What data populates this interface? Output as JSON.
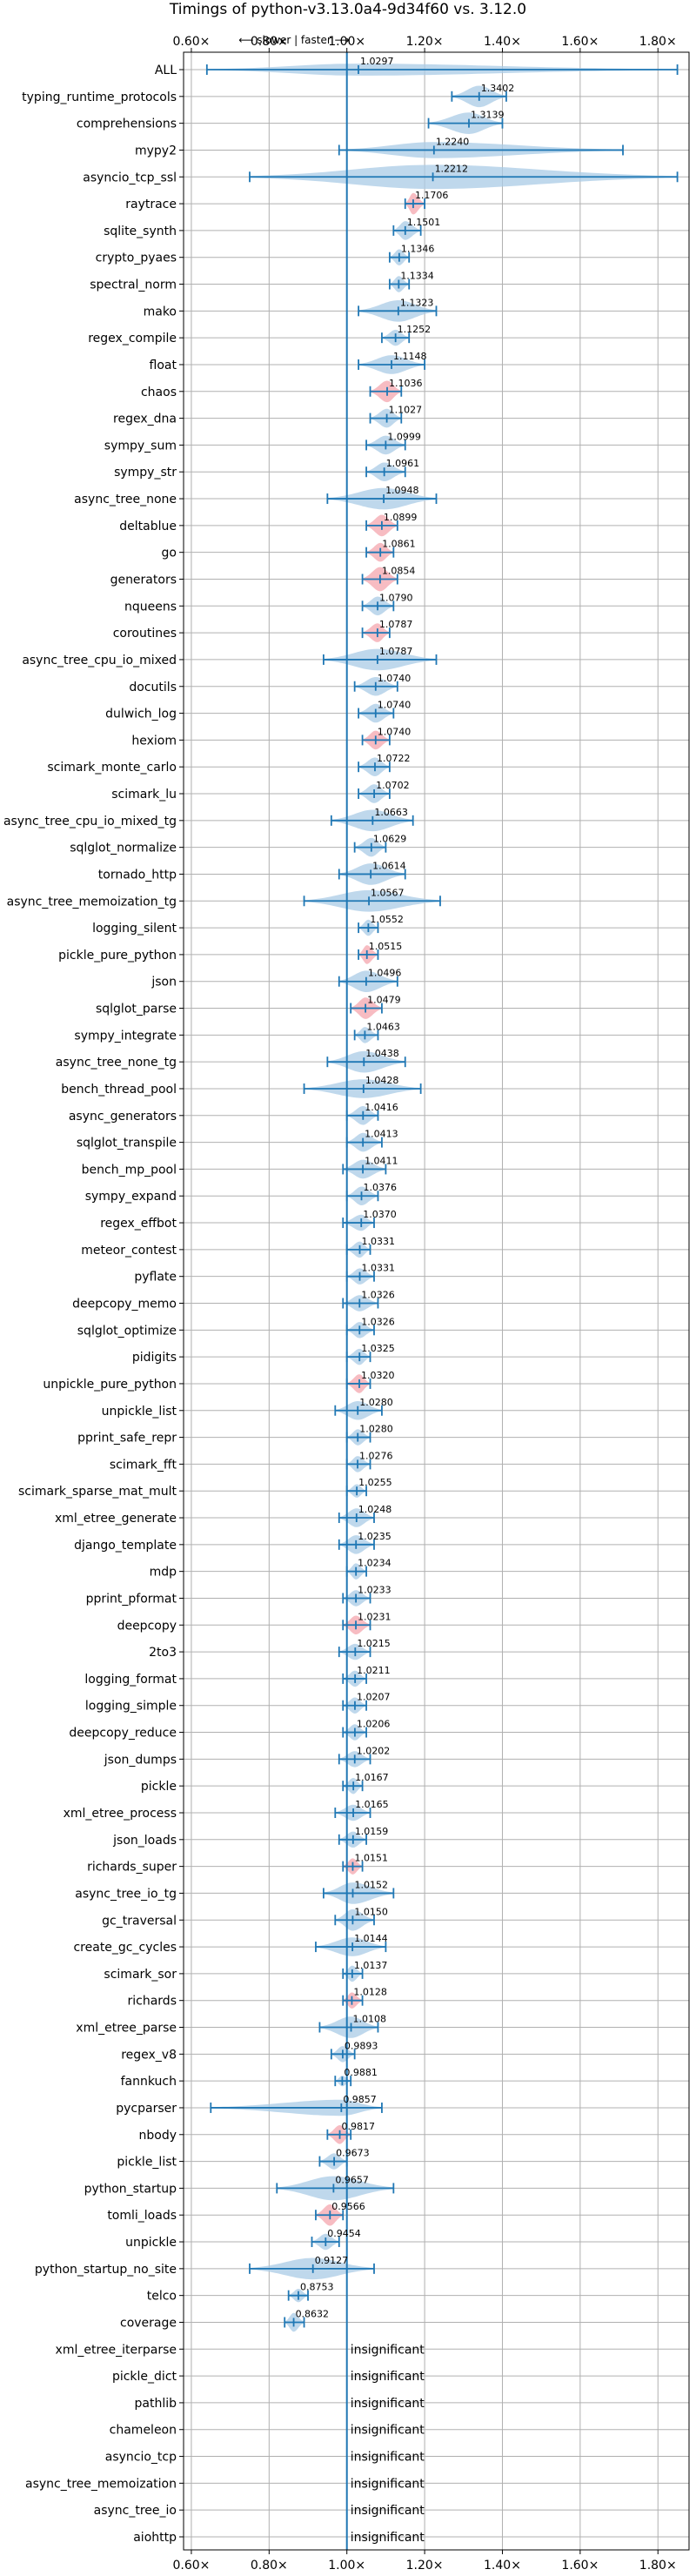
{
  "chart_data": {
    "type": "violin",
    "title": "Timings of python-v3.13.0a4-9d34f60 vs. 3.12.0",
    "annotation": "⟵ slower | faster ⟶",
    "xlim": [
      0.58,
      1.88
    ],
    "grid": true,
    "reference_x": 1.0,
    "x_ticks": [
      0.6,
      0.8,
      1.0,
      1.2,
      1.4,
      1.6,
      1.8
    ],
    "x_tick_labels": [
      "0.60×",
      "0.80×",
      "1.00×",
      "1.20×",
      "1.40×",
      "1.60×",
      "1.80×"
    ],
    "colors": {
      "normal": "#a9cbe6",
      "gc": "#f4a6ae",
      "line": "#1f77b4"
    },
    "insignificant_text": "insignificant",
    "benchmarks": [
      {
        "name": "ALL",
        "value": 1.0297,
        "label": "1.0297",
        "lo": 0.64,
        "hi": 1.85,
        "width": 0.45
      },
      {
        "name": "typing_runtime_protocols",
        "value": 1.3402,
        "label": "1.3402",
        "lo": 1.27,
        "hi": 1.41,
        "width": 0.8
      },
      {
        "name": "comprehensions",
        "value": 1.3139,
        "label": "1.3139",
        "lo": 1.21,
        "hi": 1.4,
        "width": 0.8
      },
      {
        "name": "mypy2",
        "value": 1.224,
        "label": "1.2240",
        "lo": 0.98,
        "hi": 1.71,
        "width": 0.6
      },
      {
        "name": "asyncio_tcp_ssl",
        "value": 1.2212,
        "label": "1.2212",
        "lo": 0.75,
        "hi": 1.85,
        "width": 0.9
      },
      {
        "name": "raytrace",
        "value": 1.1706,
        "label": "1.1706",
        "lo": 1.15,
        "hi": 1.2,
        "width": 0.8,
        "highlight": true
      },
      {
        "name": "sqlite_synth",
        "value": 1.1501,
        "label": "1.1501",
        "lo": 1.12,
        "hi": 1.19,
        "width": 0.7
      },
      {
        "name": "crypto_pyaes",
        "value": 1.1346,
        "label": "1.1346",
        "lo": 1.11,
        "hi": 1.16,
        "width": 0.6
      },
      {
        "name": "spectral_norm",
        "value": 1.1334,
        "label": "1.1334",
        "lo": 1.11,
        "hi": 1.16,
        "width": 0.6
      },
      {
        "name": "mako",
        "value": 1.1323,
        "label": "1.1323",
        "lo": 1.03,
        "hi": 1.23,
        "width": 0.8
      },
      {
        "name": "regex_compile",
        "value": 1.1252,
        "label": "1.1252",
        "lo": 1.09,
        "hi": 1.16,
        "width": 0.6
      },
      {
        "name": "float",
        "value": 1.1148,
        "label": "1.1148",
        "lo": 1.03,
        "hi": 1.2,
        "width": 0.7
      },
      {
        "name": "chaos",
        "value": 1.1036,
        "label": "1.1036",
        "lo": 1.06,
        "hi": 1.14,
        "width": 0.8,
        "highlight": true
      },
      {
        "name": "regex_dna",
        "value": 1.1027,
        "label": "1.1027",
        "lo": 1.06,
        "hi": 1.14,
        "width": 0.7
      },
      {
        "name": "sympy_sum",
        "value": 1.0999,
        "label": "1.0999",
        "lo": 1.05,
        "hi": 1.15,
        "width": 0.7
      },
      {
        "name": "sympy_str",
        "value": 1.0961,
        "label": "1.0961",
        "lo": 1.05,
        "hi": 1.15,
        "width": 0.7
      },
      {
        "name": "async_tree_none",
        "value": 1.0948,
        "label": "1.0948",
        "lo": 0.95,
        "hi": 1.23,
        "width": 0.8
      },
      {
        "name": "deltablue",
        "value": 1.0899,
        "label": "1.0899",
        "lo": 1.05,
        "hi": 1.13,
        "width": 0.8,
        "highlight": true
      },
      {
        "name": "go",
        "value": 1.0861,
        "label": "1.0861",
        "lo": 1.05,
        "hi": 1.12,
        "width": 0.7,
        "highlight": true
      },
      {
        "name": "generators",
        "value": 1.0854,
        "label": "1.0854",
        "lo": 1.04,
        "hi": 1.13,
        "width": 0.9,
        "highlight": true
      },
      {
        "name": "nqueens",
        "value": 1.079,
        "label": "1.0790",
        "lo": 1.04,
        "hi": 1.12,
        "width": 0.7
      },
      {
        "name": "coroutines",
        "value": 1.0787,
        "label": "1.0787",
        "lo": 1.04,
        "hi": 1.11,
        "width": 0.7,
        "highlight": true
      },
      {
        "name": "async_tree_cpu_io_mixed",
        "value": 1.0787,
        "label": "1.0787",
        "lo": 0.94,
        "hi": 1.23,
        "width": 0.8
      },
      {
        "name": "docutils",
        "value": 1.074,
        "label": "1.0740",
        "lo": 1.02,
        "hi": 1.13,
        "width": 0.7
      },
      {
        "name": "dulwich_log",
        "value": 1.074,
        "label": "1.0740",
        "lo": 1.03,
        "hi": 1.12,
        "width": 0.7
      },
      {
        "name": "hexiom",
        "value": 1.074,
        "label": "1.0740",
        "lo": 1.04,
        "hi": 1.11,
        "width": 0.7,
        "highlight": true
      },
      {
        "name": "scimark_monte_carlo",
        "value": 1.0722,
        "label": "1.0722",
        "lo": 1.03,
        "hi": 1.11,
        "width": 0.7
      },
      {
        "name": "scimark_lu",
        "value": 1.0702,
        "label": "1.0702",
        "lo": 1.03,
        "hi": 1.11,
        "width": 0.7
      },
      {
        "name": "async_tree_cpu_io_mixed_tg",
        "value": 1.0663,
        "label": "1.0663",
        "lo": 0.96,
        "hi": 1.17,
        "width": 0.8
      },
      {
        "name": "sqlglot_normalize",
        "value": 1.0629,
        "label": "1.0629",
        "lo": 1.02,
        "hi": 1.1,
        "width": 0.7
      },
      {
        "name": "tornado_http",
        "value": 1.0614,
        "label": "1.0614",
        "lo": 0.98,
        "hi": 1.15,
        "width": 0.8
      },
      {
        "name": "async_tree_memoization_tg",
        "value": 1.0567,
        "label": "1.0567",
        "lo": 0.89,
        "hi": 1.24,
        "width": 0.8
      },
      {
        "name": "logging_silent",
        "value": 1.0552,
        "label": "1.0552",
        "lo": 1.03,
        "hi": 1.08,
        "width": 0.6
      },
      {
        "name": "pickle_pure_python",
        "value": 1.0515,
        "label": "1.0515",
        "lo": 1.03,
        "hi": 1.08,
        "width": 0.7,
        "highlight": true
      },
      {
        "name": "json",
        "value": 1.0496,
        "label": "1.0496",
        "lo": 0.98,
        "hi": 1.13,
        "width": 0.8
      },
      {
        "name": "sqlglot_parse",
        "value": 1.0479,
        "label": "1.0479",
        "lo": 1.01,
        "hi": 1.09,
        "width": 0.8,
        "highlight": true
      },
      {
        "name": "sympy_integrate",
        "value": 1.0463,
        "label": "1.0463",
        "lo": 1.02,
        "hi": 1.08,
        "width": 0.6
      },
      {
        "name": "async_tree_none_tg",
        "value": 1.0438,
        "label": "1.0438",
        "lo": 0.95,
        "hi": 1.15,
        "width": 0.8
      },
      {
        "name": "bench_thread_pool",
        "value": 1.0428,
        "label": "1.0428",
        "lo": 0.89,
        "hi": 1.19,
        "width": 0.7
      },
      {
        "name": "async_generators",
        "value": 1.0416,
        "label": "1.0416",
        "lo": 1.0,
        "hi": 1.08,
        "width": 0.7
      },
      {
        "name": "sqlglot_transpile",
        "value": 1.0413,
        "label": "1.0413",
        "lo": 1.0,
        "hi": 1.09,
        "width": 0.7
      },
      {
        "name": "bench_mp_pool",
        "value": 1.0411,
        "label": "1.0411",
        "lo": 0.99,
        "hi": 1.1,
        "width": 0.7
      },
      {
        "name": "sympy_expand",
        "value": 1.0376,
        "label": "1.0376",
        "lo": 1.0,
        "hi": 1.08,
        "width": 0.7
      },
      {
        "name": "regex_effbot",
        "value": 1.037,
        "label": "1.0370",
        "lo": 0.99,
        "hi": 1.07,
        "width": 0.6
      },
      {
        "name": "meteor_contest",
        "value": 1.0331,
        "label": "1.0331",
        "lo": 1.0,
        "hi": 1.06,
        "width": 0.6
      },
      {
        "name": "pyflate",
        "value": 1.0331,
        "label": "1.0331",
        "lo": 1.0,
        "hi": 1.07,
        "width": 0.6
      },
      {
        "name": "deepcopy_memo",
        "value": 1.0326,
        "label": "1.0326",
        "lo": 0.99,
        "hi": 1.08,
        "width": 0.6
      },
      {
        "name": "sqlglot_optimize",
        "value": 1.0326,
        "label": "1.0326",
        "lo": 1.0,
        "hi": 1.07,
        "width": 0.6
      },
      {
        "name": "pidigits",
        "value": 1.0325,
        "label": "1.0325",
        "lo": 1.0,
        "hi": 1.06,
        "width": 0.6
      },
      {
        "name": "unpickle_pure_python",
        "value": 1.032,
        "label": "1.0320",
        "lo": 1.0,
        "hi": 1.06,
        "width": 0.7,
        "highlight": true
      },
      {
        "name": "unpickle_list",
        "value": 1.028,
        "label": "1.0280",
        "lo": 0.97,
        "hi": 1.09,
        "width": 0.7
      },
      {
        "name": "pprint_safe_repr",
        "value": 1.028,
        "label": "1.0280",
        "lo": 1.0,
        "hi": 1.06,
        "width": 0.6
      },
      {
        "name": "scimark_fft",
        "value": 1.0276,
        "label": "1.0276",
        "lo": 1.0,
        "hi": 1.06,
        "width": 0.6
      },
      {
        "name": "scimark_sparse_mat_mult",
        "value": 1.0255,
        "label": "1.0255",
        "lo": 1.0,
        "hi": 1.05,
        "width": 0.5
      },
      {
        "name": "xml_etree_generate",
        "value": 1.0248,
        "label": "1.0248",
        "lo": 0.98,
        "hi": 1.07,
        "width": 0.7
      },
      {
        "name": "django_template",
        "value": 1.0235,
        "label": "1.0235",
        "lo": 0.98,
        "hi": 1.07,
        "width": 0.7
      },
      {
        "name": "mdp",
        "value": 1.0234,
        "label": "1.0234",
        "lo": 1.0,
        "hi": 1.05,
        "width": 0.6
      },
      {
        "name": "pprint_pformat",
        "value": 1.0233,
        "label": "1.0233",
        "lo": 0.99,
        "hi": 1.06,
        "width": 0.6
      },
      {
        "name": "deepcopy",
        "value": 1.0231,
        "label": "1.0231",
        "lo": 0.99,
        "hi": 1.06,
        "width": 0.7,
        "highlight": true
      },
      {
        "name": "2to3",
        "value": 1.0215,
        "label": "1.0215",
        "lo": 0.98,
        "hi": 1.06,
        "width": 0.6
      },
      {
        "name": "logging_format",
        "value": 1.0211,
        "label": "1.0211",
        "lo": 0.99,
        "hi": 1.05,
        "width": 0.6
      },
      {
        "name": "logging_simple",
        "value": 1.0207,
        "label": "1.0207",
        "lo": 0.99,
        "hi": 1.05,
        "width": 0.6
      },
      {
        "name": "deepcopy_reduce",
        "value": 1.0206,
        "label": "1.0206",
        "lo": 0.99,
        "hi": 1.05,
        "width": 0.6
      },
      {
        "name": "json_dumps",
        "value": 1.0202,
        "label": "1.0202",
        "lo": 0.98,
        "hi": 1.06,
        "width": 0.6
      },
      {
        "name": "pickle",
        "value": 1.0167,
        "label": "1.0167",
        "lo": 0.99,
        "hi": 1.04,
        "width": 0.6
      },
      {
        "name": "xml_etree_process",
        "value": 1.0165,
        "label": "1.0165",
        "lo": 0.97,
        "hi": 1.06,
        "width": 0.6
      },
      {
        "name": "json_loads",
        "value": 1.0159,
        "label": "1.0159",
        "lo": 0.98,
        "hi": 1.05,
        "width": 0.6
      },
      {
        "name": "richards_super",
        "value": 1.0151,
        "label": "1.0151",
        "lo": 0.99,
        "hi": 1.04,
        "width": 0.6,
        "highlight": true
      },
      {
        "name": "async_tree_io_tg",
        "value": 1.0152,
        "label": "1.0152",
        "lo": 0.94,
        "hi": 1.12,
        "width": 0.8
      },
      {
        "name": "gc_traversal",
        "value": 1.015,
        "label": "1.0150",
        "lo": 0.97,
        "hi": 1.07,
        "width": 0.8
      },
      {
        "name": "create_gc_cycles",
        "value": 1.0144,
        "label": "1.0144",
        "lo": 0.92,
        "hi": 1.1,
        "width": 0.7
      },
      {
        "name": "scimark_sor",
        "value": 1.0137,
        "label": "1.0137",
        "lo": 0.99,
        "hi": 1.04,
        "width": 0.6
      },
      {
        "name": "richards",
        "value": 1.0128,
        "label": "1.0128",
        "lo": 0.99,
        "hi": 1.04,
        "width": 0.6,
        "highlight": true
      },
      {
        "name": "xml_etree_parse",
        "value": 1.0108,
        "label": "1.0108",
        "lo": 0.93,
        "hi": 1.08,
        "width": 0.8
      },
      {
        "name": "regex_v8",
        "value": 0.9893,
        "label": "0.9893",
        "lo": 0.96,
        "hi": 1.02,
        "width": 0.6
      },
      {
        "name": "fannkuch",
        "value": 0.9881,
        "label": "0.9881",
        "lo": 0.97,
        "hi": 1.01,
        "width": 0.4
      },
      {
        "name": "pycparser",
        "value": 0.9857,
        "label": "0.9857",
        "lo": 0.65,
        "hi": 1.09,
        "width": 0.6
      },
      {
        "name": "nbody",
        "value": 0.9817,
        "label": "0.9817",
        "lo": 0.95,
        "hi": 1.01,
        "width": 0.7,
        "highlight": true
      },
      {
        "name": "pickle_list",
        "value": 0.9673,
        "label": "0.9673",
        "lo": 0.93,
        "hi": 1.0,
        "width": 0.6
      },
      {
        "name": "python_startup",
        "value": 0.9657,
        "label": "0.9657",
        "lo": 0.82,
        "hi": 1.12,
        "width": 0.9
      },
      {
        "name": "tomli_loads",
        "value": 0.9566,
        "label": "0.9566",
        "lo": 0.92,
        "hi": 0.99,
        "width": 0.8,
        "highlight": true
      },
      {
        "name": "unpickle",
        "value": 0.9454,
        "label": "0.9454",
        "lo": 0.91,
        "hi": 0.98,
        "width": 0.6
      },
      {
        "name": "python_startup_no_site",
        "value": 0.9127,
        "label": "0.9127",
        "lo": 0.75,
        "hi": 1.07,
        "width": 0.8
      },
      {
        "name": "telco",
        "value": 0.8753,
        "label": "0.8753",
        "lo": 0.85,
        "hi": 0.9,
        "width": 0.5
      },
      {
        "name": "coverage",
        "value": 0.8632,
        "label": "0.8632",
        "lo": 0.84,
        "hi": 0.89,
        "width": 0.7
      },
      {
        "name": "xml_etree_iterparse",
        "insignificant": true
      },
      {
        "name": "pickle_dict",
        "insignificant": true
      },
      {
        "name": "pathlib",
        "insignificant": true
      },
      {
        "name": "chameleon",
        "insignificant": true
      },
      {
        "name": "asyncio_tcp",
        "insignificant": true
      },
      {
        "name": "async_tree_memoization",
        "insignificant": true
      },
      {
        "name": "async_tree_io",
        "insignificant": true
      },
      {
        "name": "aiohttp",
        "insignificant": true
      }
    ]
  }
}
